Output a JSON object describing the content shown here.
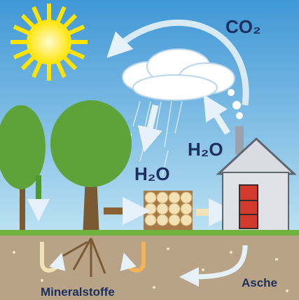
{
  "labels": {
    "co2": "CO₂",
    "h2o_rain": "H₂O",
    "h2o_house": "H₂O",
    "minerals": "Mineralstoffe",
    "ash": "Asche"
  }
}
